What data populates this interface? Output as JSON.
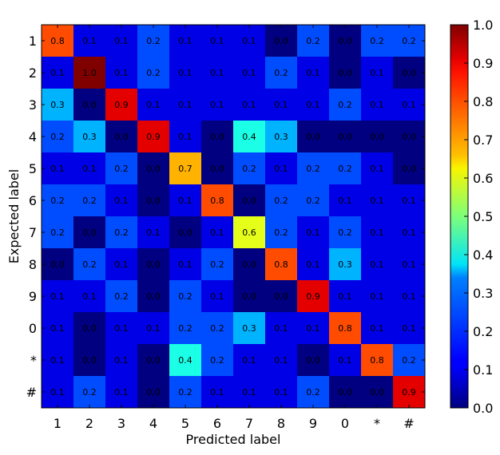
{
  "chart_data": {
    "type": "heatmap",
    "xlabel": "Predicted label",
    "ylabel": "Expected label",
    "x_categories": [
      "1",
      "2",
      "3",
      "4",
      "5",
      "6",
      "7",
      "8",
      "9",
      "0",
      "*",
      "#"
    ],
    "y_categories": [
      "1",
      "2",
      "3",
      "4",
      "5",
      "6",
      "7",
      "8",
      "9",
      "0",
      "*",
      "#"
    ],
    "values": [
      [
        0.8,
        0.1,
        0.1,
        0.2,
        0.1,
        0.1,
        0.1,
        0.0,
        0.2,
        0.0,
        0.2,
        0.2
      ],
      [
        0.1,
        1.0,
        0.1,
        0.2,
        0.1,
        0.1,
        0.1,
        0.2,
        0.1,
        0.0,
        0.1,
        0.0
      ],
      [
        0.3,
        0.0,
        0.9,
        0.1,
        0.1,
        0.1,
        0.1,
        0.1,
        0.1,
        0.2,
        0.1,
        0.1
      ],
      [
        0.2,
        0.3,
        0.0,
        0.9,
        0.1,
        0.0,
        0.4,
        0.3,
        0.0,
        0.0,
        0.0,
        0.0
      ],
      [
        0.1,
        0.1,
        0.2,
        0.0,
        0.7,
        0.0,
        0.2,
        0.1,
        0.2,
        0.2,
        0.1,
        0.0
      ],
      [
        0.2,
        0.2,
        0.1,
        0.0,
        0.1,
        0.8,
        0.0,
        0.2,
        0.2,
        0.1,
        0.1,
        0.1
      ],
      [
        0.2,
        0.0,
        0.2,
        0.1,
        0.0,
        0.1,
        0.6,
        0.2,
        0.1,
        0.2,
        0.1,
        0.1
      ],
      [
        0.0,
        0.2,
        0.1,
        0.0,
        0.1,
        0.2,
        0.0,
        0.8,
        0.1,
        0.3,
        0.1,
        0.1
      ],
      [
        0.1,
        0.1,
        0.2,
        0.0,
        0.2,
        0.1,
        0.0,
        0.0,
        0.9,
        0.1,
        0.1,
        0.1
      ],
      [
        0.1,
        0.0,
        0.1,
        0.1,
        0.2,
        0.2,
        0.3,
        0.1,
        0.1,
        0.8,
        0.1,
        0.1
      ],
      [
        0.1,
        0.0,
        0.1,
        0.0,
        0.4,
        0.2,
        0.1,
        0.1,
        0.0,
        0.1,
        0.8,
        0.2
      ],
      [
        0.1,
        0.2,
        0.1,
        0.0,
        0.2,
        0.1,
        0.1,
        0.1,
        0.2,
        0.0,
        0.0,
        0.9
      ]
    ],
    "colorbar": {
      "range": [
        0.0,
        1.0
      ],
      "ticks": [
        "0.0",
        "0.1",
        "0.2",
        "0.3",
        "0.4",
        "0.5",
        "0.6",
        "0.7",
        "0.8",
        "0.9",
        "1.0"
      ]
    },
    "colormap": "jet"
  }
}
